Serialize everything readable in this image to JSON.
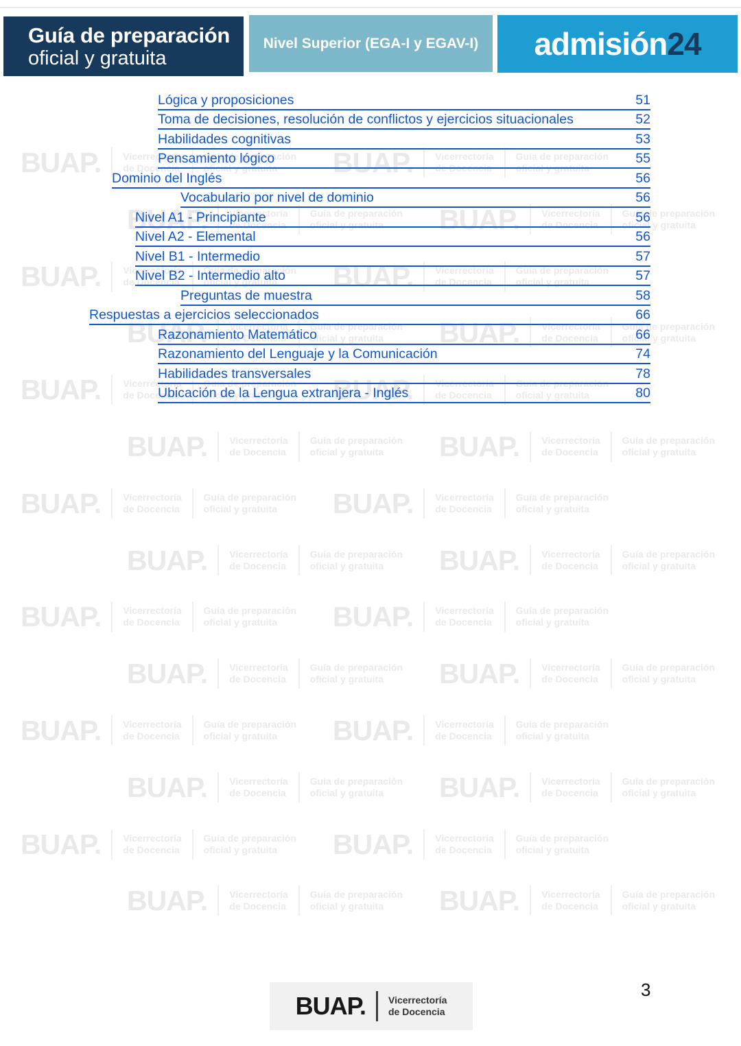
{
  "header": {
    "left_box": {
      "line1": "Guía de preparación",
      "line2": "oficial y gratuita",
      "bg": "#17395C"
    },
    "center_box": {
      "label": "Nivel Superior (EGA-I y EGAV-I)",
      "bg": "#7DB8CA"
    },
    "right_box": {
      "brand": "admisión",
      "brand_suffix": "24",
      "bg": "#1E9DD3",
      "suffix_color": "#17395C"
    }
  },
  "toc": {
    "link_color": "#1155CC",
    "entries": [
      {
        "label": "Lógica y proposiciones",
        "page": "51",
        "level": 3
      },
      {
        "label": "Toma de decisiones, resolución de conflictos y ejercicios situacionales",
        "page": "52",
        "level": 3
      },
      {
        "label": "Habilidades cognitivas",
        "page": "53",
        "level": 3
      },
      {
        "label": "Pensamiento lógico",
        "page": "55",
        "level": 3
      },
      {
        "label": "Dominio del Inglés",
        "page": "56",
        "level": 1
      },
      {
        "label": "Vocabulario por nivel de dominio",
        "page": "56",
        "level": 4
      },
      {
        "label": "Nivel A1 - Principiante",
        "page": "56",
        "level": 2
      },
      {
        "label": "Nivel A2 - Elemental",
        "page": "56",
        "level": 2
      },
      {
        "label": "Nivel B1 - Intermedio",
        "page": "57",
        "level": 2
      },
      {
        "label": "Nivel B2 - Intermedio alto",
        "page": "57",
        "level": 2
      },
      {
        "label": "Preguntas de muestra",
        "page": "58",
        "level": 4
      },
      {
        "label": "Respuestas a ejercicios seleccionados",
        "page": "66",
        "level": 0
      },
      {
        "label": "Razonamiento Matemático",
        "page": "66",
        "level": 3
      },
      {
        "label": "Razonamiento del Lenguaje y la Comunicación",
        "page": "74",
        "level": 3
      },
      {
        "label": "Habilidades transversales",
        "page": "78",
        "level": 3
      },
      {
        "label": "Ubicación de la Lengua extranjera - Inglés",
        "page": "80",
        "level": 3
      }
    ]
  },
  "watermark": {
    "logo": "BUAP.",
    "col1_line1": "Vicerrectoría",
    "col1_line2": "de Docencia",
    "col2_line1": "Guía de preparación",
    "col2_line2": "oficial y gratuita"
  },
  "footer": {
    "logo": "BUAP.",
    "org_line1": "Vicerrectoría",
    "org_line2": "de Docencia",
    "page_number": "3"
  }
}
